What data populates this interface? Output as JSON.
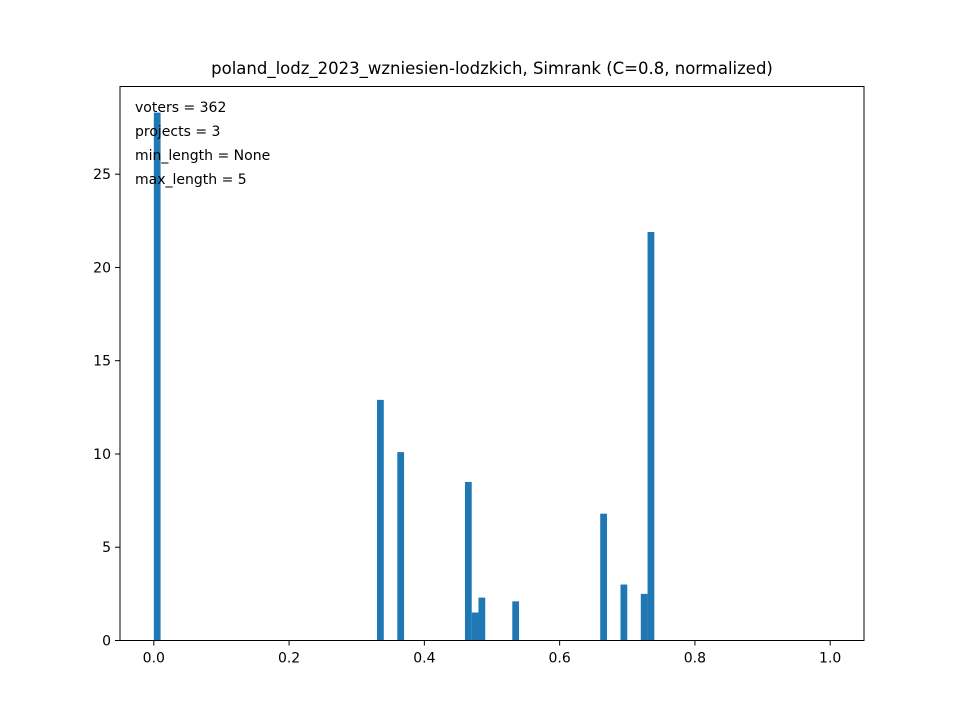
{
  "chart_data": {
    "type": "bar",
    "title": "poland_lodz_2023_wzniesien-lodzkich, Simrank (C=0.8, normalized)",
    "xlabel": "",
    "ylabel": "",
    "xlim": [
      -0.05,
      1.05
    ],
    "ylim": [
      0,
      29.7
    ],
    "bin_width": 0.01,
    "x_ticks": [
      0.0,
      0.2,
      0.4,
      0.6,
      0.8,
      1.0
    ],
    "x_tick_labels": [
      "0.0",
      "0.2",
      "0.4",
      "0.6",
      "0.8",
      "1.0"
    ],
    "y_ticks": [
      0,
      5,
      10,
      15,
      20,
      25
    ],
    "y_tick_labels": [
      "0",
      "5",
      "10",
      "15",
      "20",
      "25"
    ],
    "bars": [
      {
        "x": 0.0,
        "value": 28.3
      },
      {
        "x": 0.33,
        "value": 12.9
      },
      {
        "x": 0.36,
        "value": 10.1
      },
      {
        "x": 0.46,
        "value": 8.5
      },
      {
        "x": 0.47,
        "value": 1.5
      },
      {
        "x": 0.48,
        "value": 2.3
      },
      {
        "x": 0.53,
        "value": 2.1
      },
      {
        "x": 0.66,
        "value": 6.8
      },
      {
        "x": 0.69,
        "value": 3.0
      },
      {
        "x": 0.72,
        "value": 2.5
      },
      {
        "x": 0.73,
        "value": 21.9
      }
    ],
    "color": "#1f77b4",
    "annotations": [
      "voters = 362",
      "projects = 3",
      "min_length = None",
      "max_length = 5"
    ],
    "grid": false
  }
}
